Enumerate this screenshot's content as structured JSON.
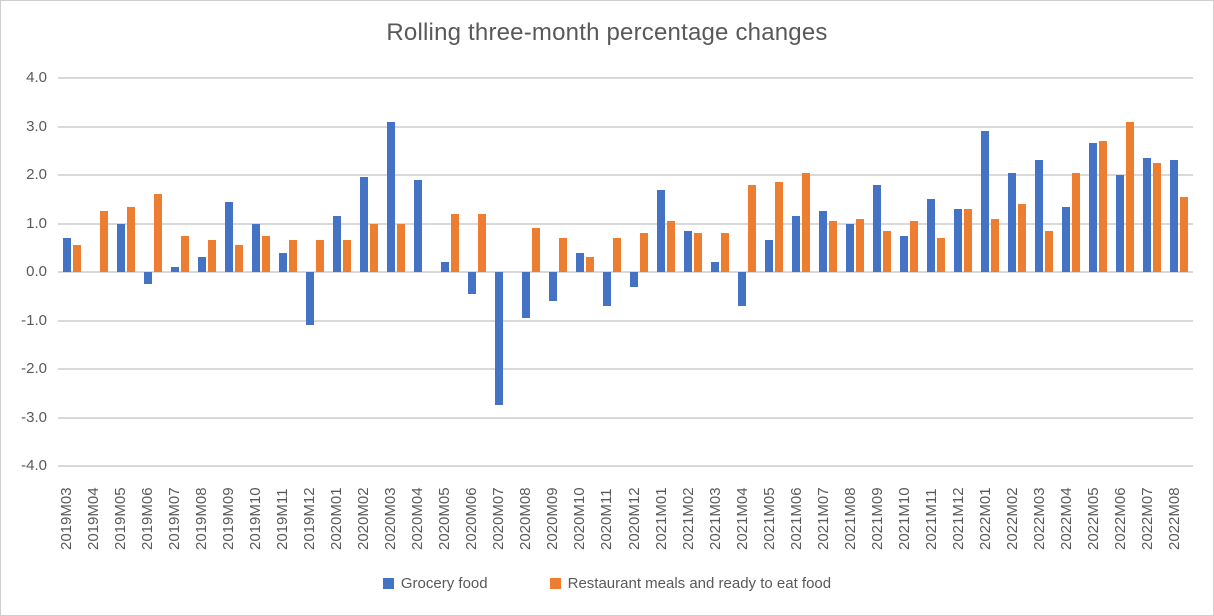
{
  "chart_data": {
    "type": "bar",
    "title": "Rolling three-month percentage changes",
    "xlabel": "",
    "ylabel": "",
    "ylim": [
      -4.0,
      4.0
    ],
    "ytick_step": 1.0,
    "ytick_labels": [
      "4.0",
      "3.0",
      "2.0",
      "1.0",
      "0.0",
      "-1.0",
      "-2.0",
      "-3.0",
      "-4.0"
    ],
    "grid": true,
    "legend_position": "bottom",
    "categories": [
      "2019M03",
      "2019M04",
      "2019M05",
      "2019M06",
      "2019M07",
      "2019M08",
      "2019M09",
      "2019M10",
      "2019M11",
      "2019M12",
      "2020M01",
      "2020M02",
      "2020M03",
      "2020M04",
      "2020M05",
      "2020M06",
      "2020M07",
      "2020M08",
      "2020M09",
      "2020M10",
      "2020M11",
      "2020M12",
      "2021M01",
      "2021M02",
      "2021M03",
      "2021M04",
      "2021M05",
      "2021M06",
      "2021M07",
      "2021M08",
      "2021M09",
      "2021M10",
      "2021M11",
      "2021M12",
      "2022M01",
      "2022M02",
      "2022M03",
      "2022M04",
      "2022M05",
      "2022M06",
      "2022M07",
      "2022M08"
    ],
    "series": [
      {
        "name": "Grocery food",
        "color": "#4472C4",
        "values": [
          0.7,
          0.0,
          1.0,
          -0.25,
          0.1,
          0.3,
          1.45,
          1.0,
          0.4,
          -1.1,
          1.15,
          1.95,
          3.1,
          1.9,
          0.2,
          -0.45,
          -2.75,
          -0.95,
          -0.6,
          0.4,
          -0.7,
          -0.3,
          1.7,
          0.85,
          0.2,
          -0.7,
          0.65,
          1.15,
          1.25,
          1.0,
          1.8,
          0.75,
          1.5,
          1.3,
          2.9,
          2.05,
          2.3,
          1.35,
          2.65,
          2.0,
          2.35,
          2.3
        ]
      },
      {
        "name": "Restaurant meals and ready to eat food",
        "color": "#ED7D31",
        "values": [
          0.55,
          1.25,
          1.35,
          1.6,
          0.75,
          0.65,
          0.55,
          0.75,
          0.65,
          0.65,
          0.65,
          1.0,
          1.0,
          0.0,
          1.2,
          1.2,
          0.0,
          0.9,
          0.7,
          0.3,
          0.7,
          0.8,
          1.05,
          0.8,
          0.8,
          1.8,
          1.85,
          2.05,
          1.05,
          1.1,
          0.85,
          1.05,
          0.7,
          1.3,
          1.1,
          1.4,
          0.85,
          2.05,
          2.7,
          3.1,
          2.25,
          1.55
        ]
      }
    ],
    "colors": {
      "grid": "#d9d9d9",
      "text": "#595959",
      "background": "#ffffff"
    }
  }
}
